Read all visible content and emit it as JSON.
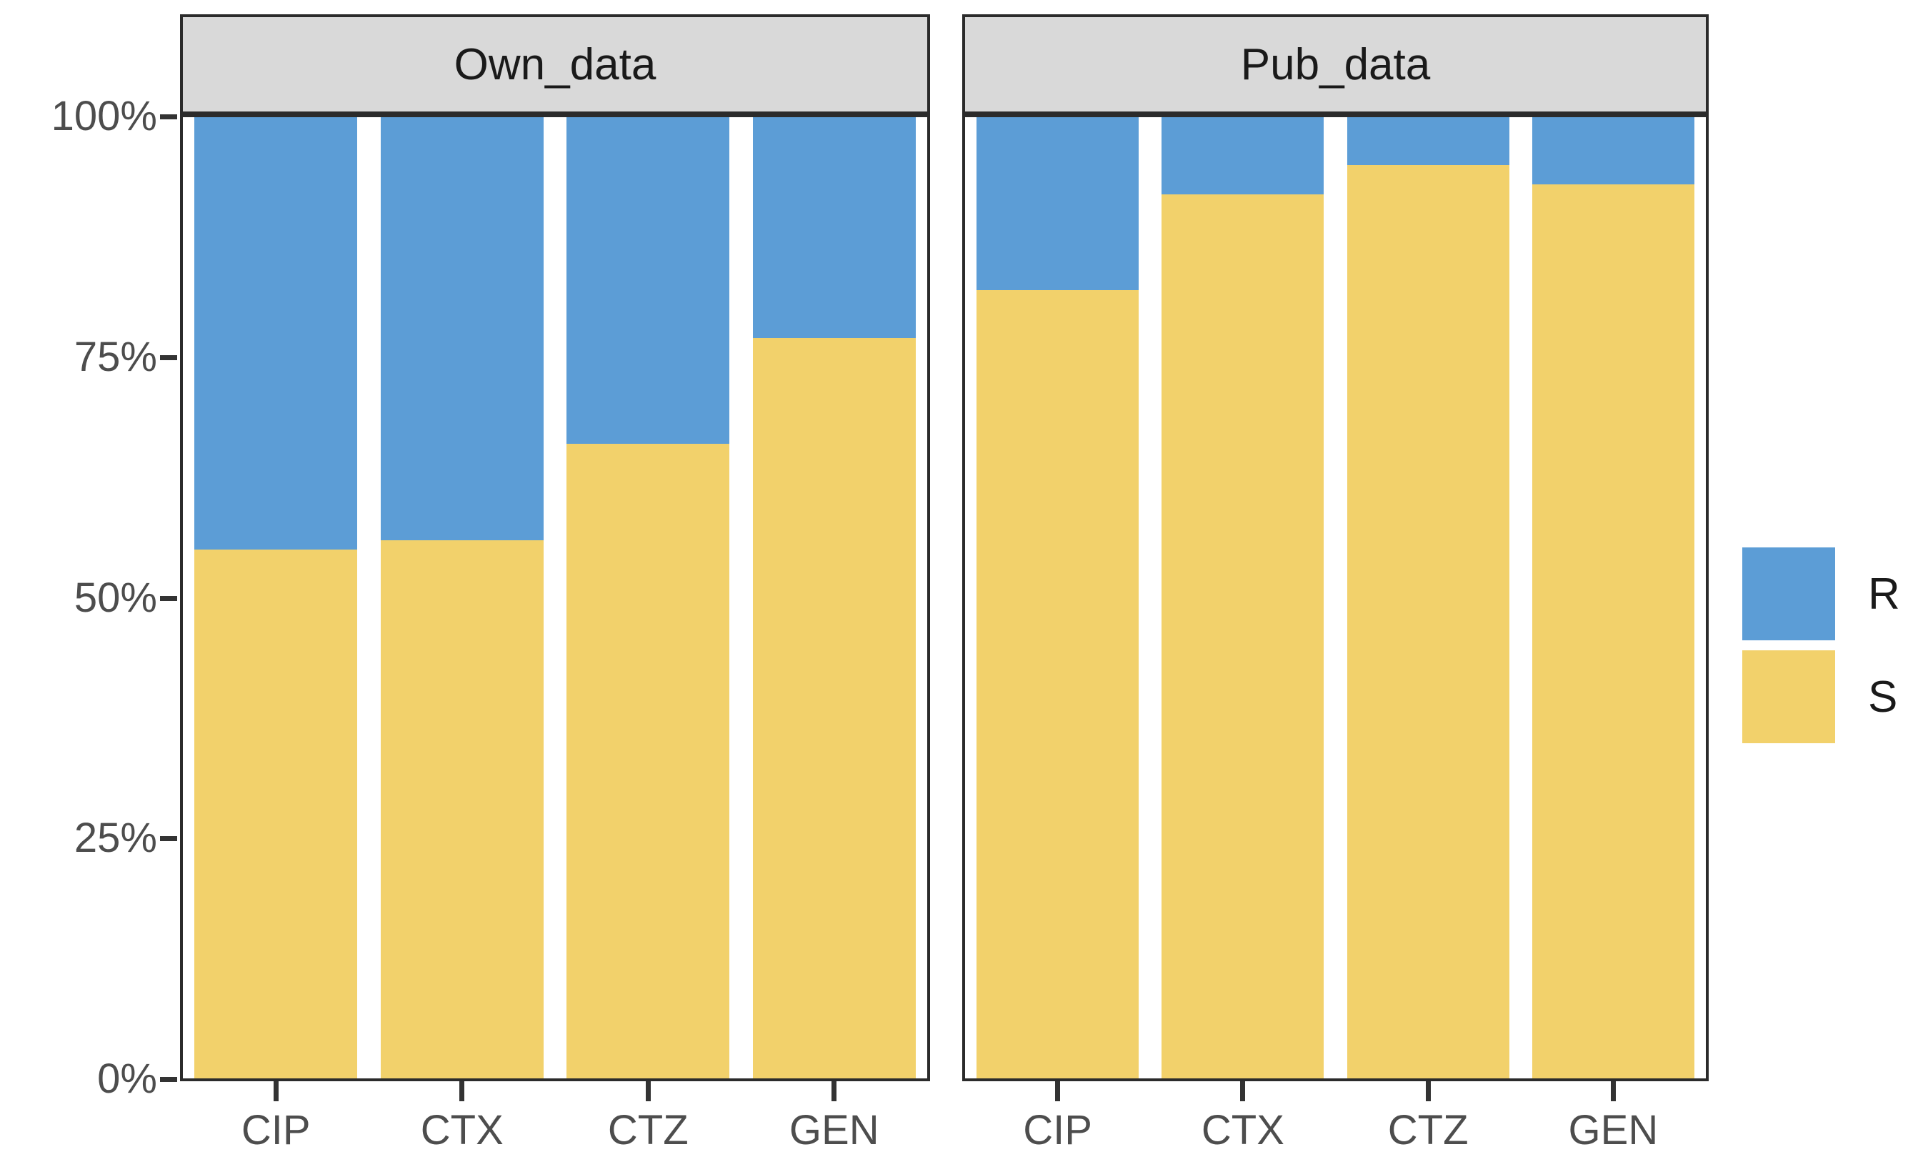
{
  "chart_data": {
    "type": "bar",
    "stacked": true,
    "unit": "percent",
    "title": "",
    "xlabel": "",
    "ylabel": "",
    "ylim": [
      0,
      100
    ],
    "yticks": [
      "0%",
      "25%",
      "50%",
      "75%",
      "100%"
    ],
    "grid": false,
    "categories": [
      "CIP",
      "CTX",
      "CTZ",
      "GEN"
    ],
    "facets": [
      {
        "label": "Own_data",
        "series": [
          {
            "name": "R",
            "values": [
              45,
              44,
              34,
              23
            ]
          },
          {
            "name": "S",
            "values": [
              55,
              56,
              66,
              77
            ]
          }
        ]
      },
      {
        "label": "Pub_data",
        "series": [
          {
            "name": "R",
            "values": [
              18,
              8,
              5,
              7
            ]
          },
          {
            "name": "S",
            "values": [
              82,
              92,
              95,
              93
            ]
          }
        ]
      }
    ],
    "legend": {
      "position": "right",
      "entries": [
        {
          "label": "R",
          "color": "#5C9DD6"
        },
        {
          "label": "S",
          "color": "#F2D16B"
        }
      ]
    },
    "colors": {
      "R": "#5C9DD6",
      "S": "#F2D16B"
    },
    "style": {
      "strip_background": "#D9D9D9",
      "panel_border": "#2B2B2B",
      "axis_text_color": "#4D4D4D",
      "strip_text_color": "#1A1A1A"
    }
  }
}
